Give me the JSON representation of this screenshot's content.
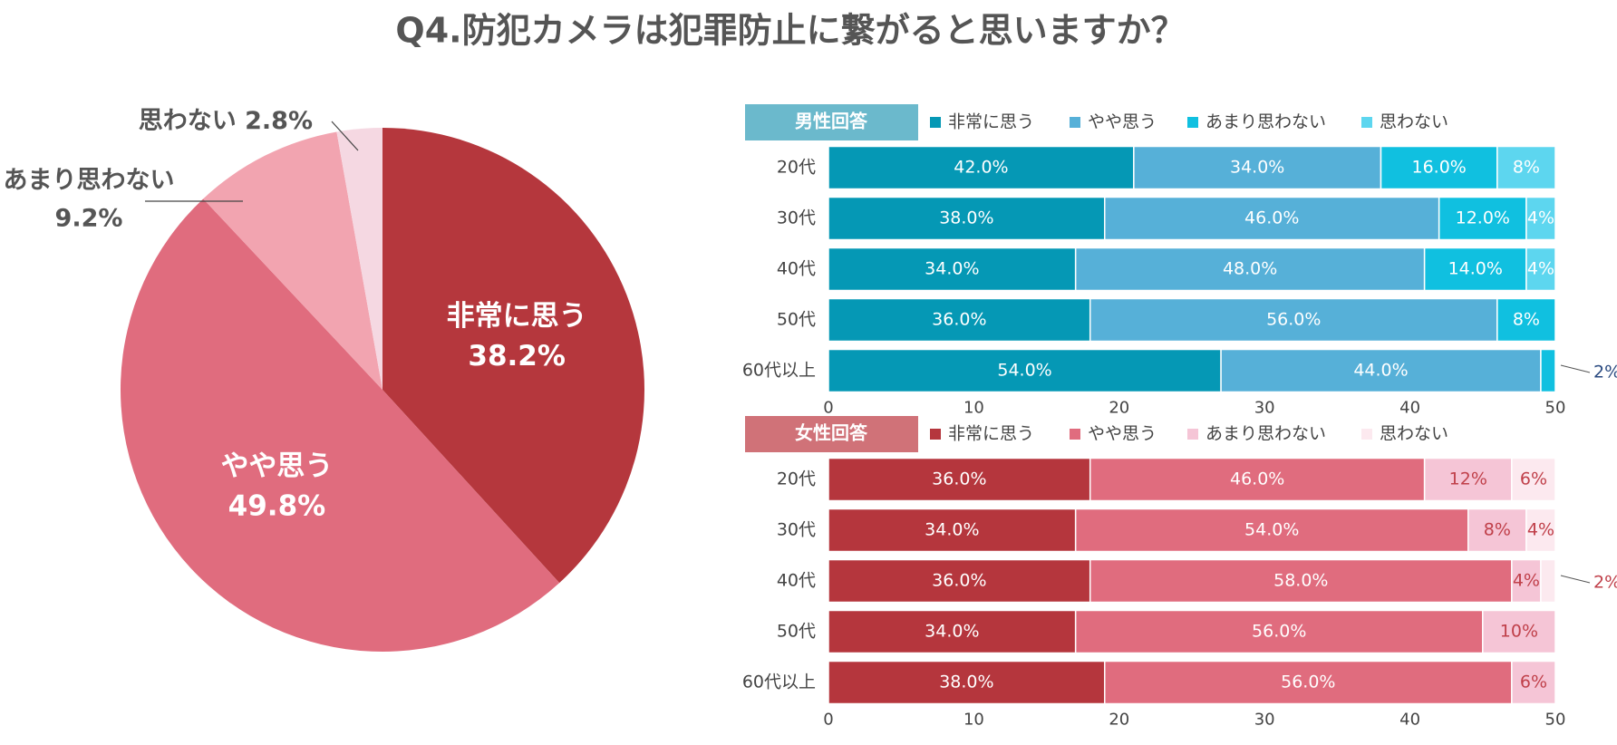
{
  "title": "Q4.防犯カメラは犯罪防止に繋がると思いますか？",
  "chart_data": [
    {
      "type": "pie",
      "categories": [
        "非常に思う",
        "やや思う",
        "あまり思わない",
        "思わない"
      ],
      "values": [
        38.2,
        49.8,
        9.2,
        2.8
      ],
      "value_labels": [
        "38.2%",
        "49.8%",
        "9.2%",
        "2.8%"
      ],
      "colors": [
        "#b5373d",
        "#e06c7e",
        "#f2a4b0",
        "#f5d8e2"
      ]
    },
    {
      "type": "bar",
      "orientation": "horizontal",
      "stacked": true,
      "title": "男性回答",
      "title_color": "#6bb9cc",
      "categories": [
        "20代",
        "30代",
        "40代",
        "50代",
        "60代以上"
      ],
      "xlim": [
        0,
        50
      ],
      "xticks": [
        0,
        10,
        20,
        30,
        40,
        50
      ],
      "outside_label_color": "#2a4a80",
      "series": [
        {
          "name": "非常に思う",
          "color": "#0598b5",
          "label_color": "#ffffff",
          "values": [
            21,
            19,
            17,
            18,
            27
          ],
          "value_labels": [
            "42.0%",
            "38.0%",
            "34.0%",
            "36.0%",
            "54.0%"
          ]
        },
        {
          "name": "やや思う",
          "color": "#56b0d8",
          "label_color": "#ffffff",
          "values": [
            17,
            23,
            24,
            28,
            22
          ],
          "value_labels": [
            "34.0%",
            "46.0%",
            "48.0%",
            "56.0%",
            "44.0%"
          ]
        },
        {
          "name": "あまり思わない",
          "color": "#10c0e0",
          "label_color": "#ffffff",
          "values": [
            8,
            6,
            7,
            4,
            1
          ],
          "value_labels": [
            "16.0%",
            "12.0%",
            "14.0%",
            "8%",
            "2%"
          ]
        },
        {
          "name": "思わない",
          "color": "#5dd6ef",
          "label_color": "#ffffff",
          "values": [
            4,
            2,
            2,
            0,
            0
          ],
          "value_labels": [
            "8%",
            "4%",
            "4%",
            null,
            null
          ]
        }
      ]
    },
    {
      "type": "bar",
      "orientation": "horizontal",
      "stacked": true,
      "title": "女性回答",
      "title_color": "#d07278",
      "categories": [
        "20代",
        "30代",
        "40代",
        "50代",
        "60代以上"
      ],
      "xlim": [
        0,
        50
      ],
      "xticks": [
        0,
        10,
        20,
        30,
        40,
        50
      ],
      "outside_label_color": "#c0404a",
      "series": [
        {
          "name": "非常に思う",
          "color": "#b5363d",
          "label_color": "#ffffff",
          "values": [
            18,
            17,
            18,
            17,
            19
          ],
          "value_labels": [
            "36.0%",
            "34.0%",
            "36.0%",
            "34.0%",
            "38.0%"
          ]
        },
        {
          "name": "やや思う",
          "color": "#e06c7e",
          "label_color": "#ffffff",
          "values": [
            23,
            27,
            29,
            28,
            28
          ],
          "value_labels": [
            "46.0%",
            "54.0%",
            "58.0%",
            "56.0%",
            "56.0%"
          ]
        },
        {
          "name": "あまり思わない",
          "color": "#f5c5d6",
          "label_color": "#c0404a",
          "values": [
            6,
            4,
            2,
            5,
            3
          ],
          "value_labels": [
            "12%",
            "8%",
            "4%",
            "10%",
            "6%"
          ]
        },
        {
          "name": "思わない",
          "color": "#fce9ef",
          "label_color": "#c0404a",
          "values": [
            3,
            2,
            1,
            0,
            0
          ],
          "value_labels": [
            "6%",
            "4%",
            "2%",
            null,
            null
          ]
        }
      ]
    }
  ]
}
